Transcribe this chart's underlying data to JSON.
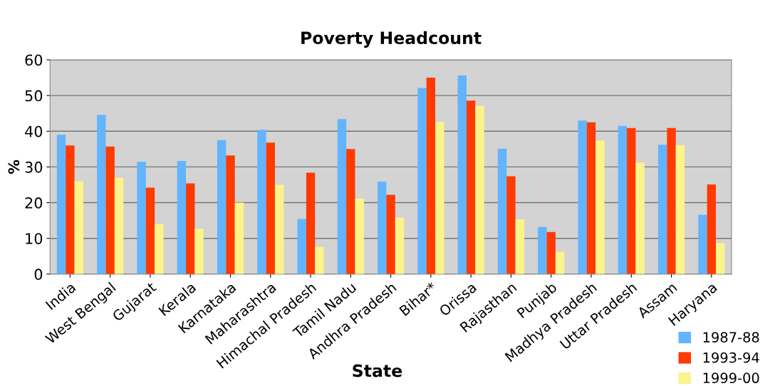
{
  "chart_data": {
    "type": "bar",
    "title": "Poverty Headcount",
    "xlabel": "State",
    "ylabel": "%",
    "categories": [
      "India",
      "West Bengal",
      "Gujarat",
      "Kerala",
      "Karnataka",
      "Maharashtra",
      "Himachal Pradesh",
      "Tamil Nadu",
      "Andhra Pradesh",
      "Bihar*",
      "Orissa",
      "Rajasthan",
      "Punjab",
      "Madhya Pradesh",
      "Uttar Pradesh",
      "Assam",
      "Haryana"
    ],
    "series": [
      {
        "name": "1987-88",
        "color": "#62b4ff",
        "values": [
          39,
          44.6,
          31.5,
          31.7,
          37.5,
          40.4,
          15.4,
          43.4,
          25.9,
          52.1,
          55.6,
          35.1,
          13.2,
          43,
          41.5,
          36.2,
          16.6
        ]
      },
      {
        "name": "1993-94",
        "color": "#ff3a00",
        "values": [
          36,
          35.7,
          24.2,
          25.4,
          33.2,
          36.8,
          28.4,
          35,
          22.2,
          55,
          48.6,
          27.4,
          11.8,
          42.5,
          40.9,
          40.9,
          25.1
        ]
      },
      {
        "name": "1999-00",
        "color": "#fbf48a",
        "values": [
          26,
          27,
          14,
          12.7,
          20,
          25,
          7.6,
          21.1,
          15.8,
          42.6,
          47.1,
          15.3,
          6.2,
          37.4,
          31.2,
          36.1,
          8.7
        ]
      }
    ],
    "ylim": [
      0,
      60
    ],
    "yticks": [
      0,
      10,
      20,
      30,
      40,
      50,
      60
    ],
    "grid": "y",
    "legend": "bottom right"
  }
}
